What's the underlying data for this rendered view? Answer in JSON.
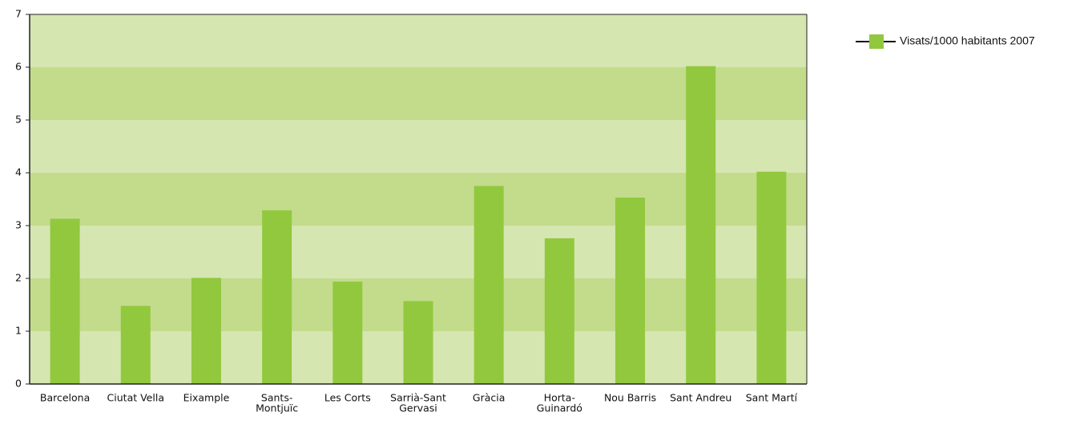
{
  "chart_data": {
    "type": "bar",
    "categories": [
      [
        "Barcelona"
      ],
      [
        "Ciutat Vella"
      ],
      [
        "Eixample"
      ],
      [
        "Sants-",
        "Montjuïc"
      ],
      [
        "Les Corts"
      ],
      [
        "Sarrià-Sant",
        "Gervasi"
      ],
      [
        "Gràcia"
      ],
      [
        "Horta-",
        "Guinardó"
      ],
      [
        "Nou Barris"
      ],
      [
        "Sant Andreu"
      ],
      [
        "Sant Martí"
      ]
    ],
    "series": [
      {
        "name": "Visats/1000 habitants 2007",
        "color": "#92c83e",
        "values": [
          3.13,
          1.48,
          2.01,
          3.29,
          1.94,
          1.57,
          3.75,
          2.76,
          3.53,
          6.02,
          4.02
        ]
      }
    ],
    "ylim": [
      0,
      7
    ],
    "yticks": [
      0,
      1,
      2,
      3,
      4,
      5,
      6,
      7
    ],
    "grid": true,
    "band_colors": [
      "#d6e6b1",
      "#c2dc8c"
    ],
    "legend": "top-right"
  }
}
